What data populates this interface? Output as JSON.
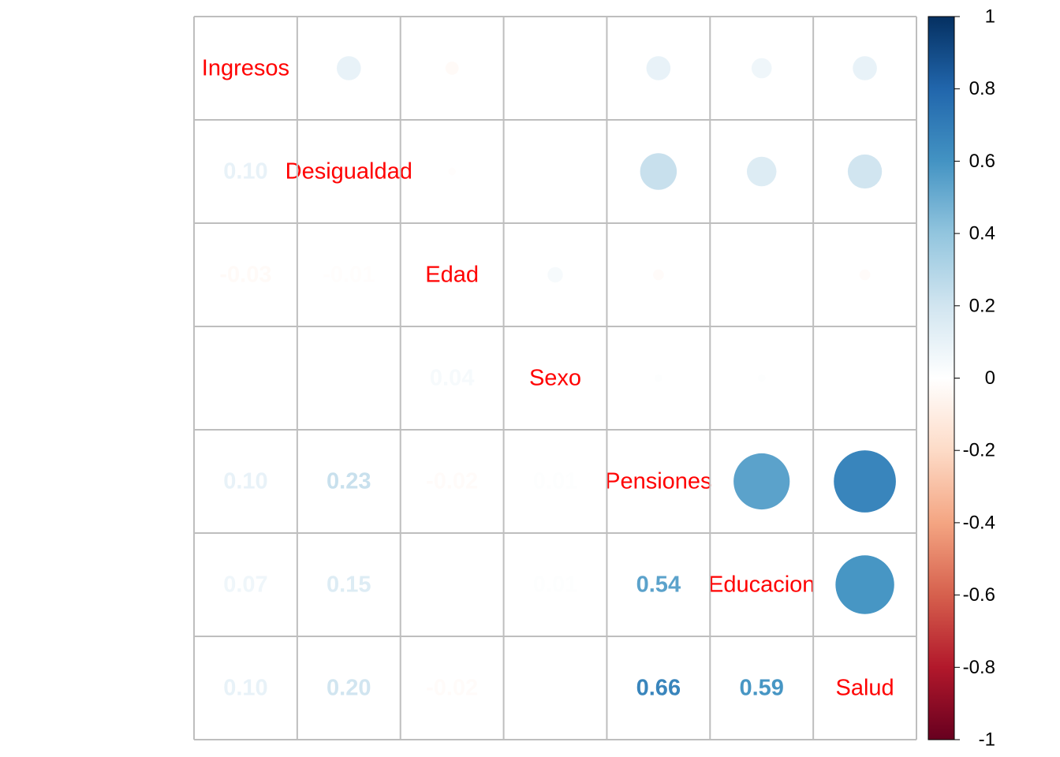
{
  "chart_data": {
    "type": "heatmap",
    "title": "",
    "variables": [
      "Ingresos",
      "Desigualdad",
      "Edad",
      "Sexo",
      "Pensiones",
      "Educacion",
      "Salud"
    ],
    "matrix": [
      [
        1,
        0.1,
        -0.03,
        0.0,
        0.1,
        0.07,
        0.1
      ],
      [
        0.1,
        1,
        -0.01,
        0.0,
        0.23,
        0.15,
        0.2
      ],
      [
        -0.03,
        -0.01,
        1,
        0.04,
        -0.02,
        0.0,
        -0.02
      ],
      [
        0.0,
        0.0,
        0.04,
        1,
        0.01,
        0.01,
        0.0
      ],
      [
        0.1,
        0.23,
        -0.02,
        0.01,
        1,
        0.54,
        0.66
      ],
      [
        0.07,
        0.15,
        0.0,
        0.01,
        0.54,
        1,
        0.59
      ],
      [
        0.1,
        0.2,
        -0.02,
        0.0,
        0.66,
        0.59,
        1
      ]
    ],
    "lower_triangle": "numbers",
    "upper_triangle": "circles",
    "diagonal": "variable names",
    "number_format": "0.00",
    "label_color": "#ff0000",
    "grid": true,
    "legend": "right",
    "colorbar": {
      "range": [
        -1,
        1
      ],
      "ticks": [
        "1",
        "0.8",
        "0.6",
        "0.4",
        "0.2",
        "0",
        "-0.2",
        "-0.4",
        "-0.6",
        "-0.8",
        "-1"
      ],
      "colors": [
        "#67001F",
        "#B2182B",
        "#D6604D",
        "#F4A582",
        "#FDDBC7",
        "#FFFFFF",
        "#D1E5F0",
        "#92C5DE",
        "#4393C3",
        "#2166AC",
        "#053061"
      ]
    }
  }
}
